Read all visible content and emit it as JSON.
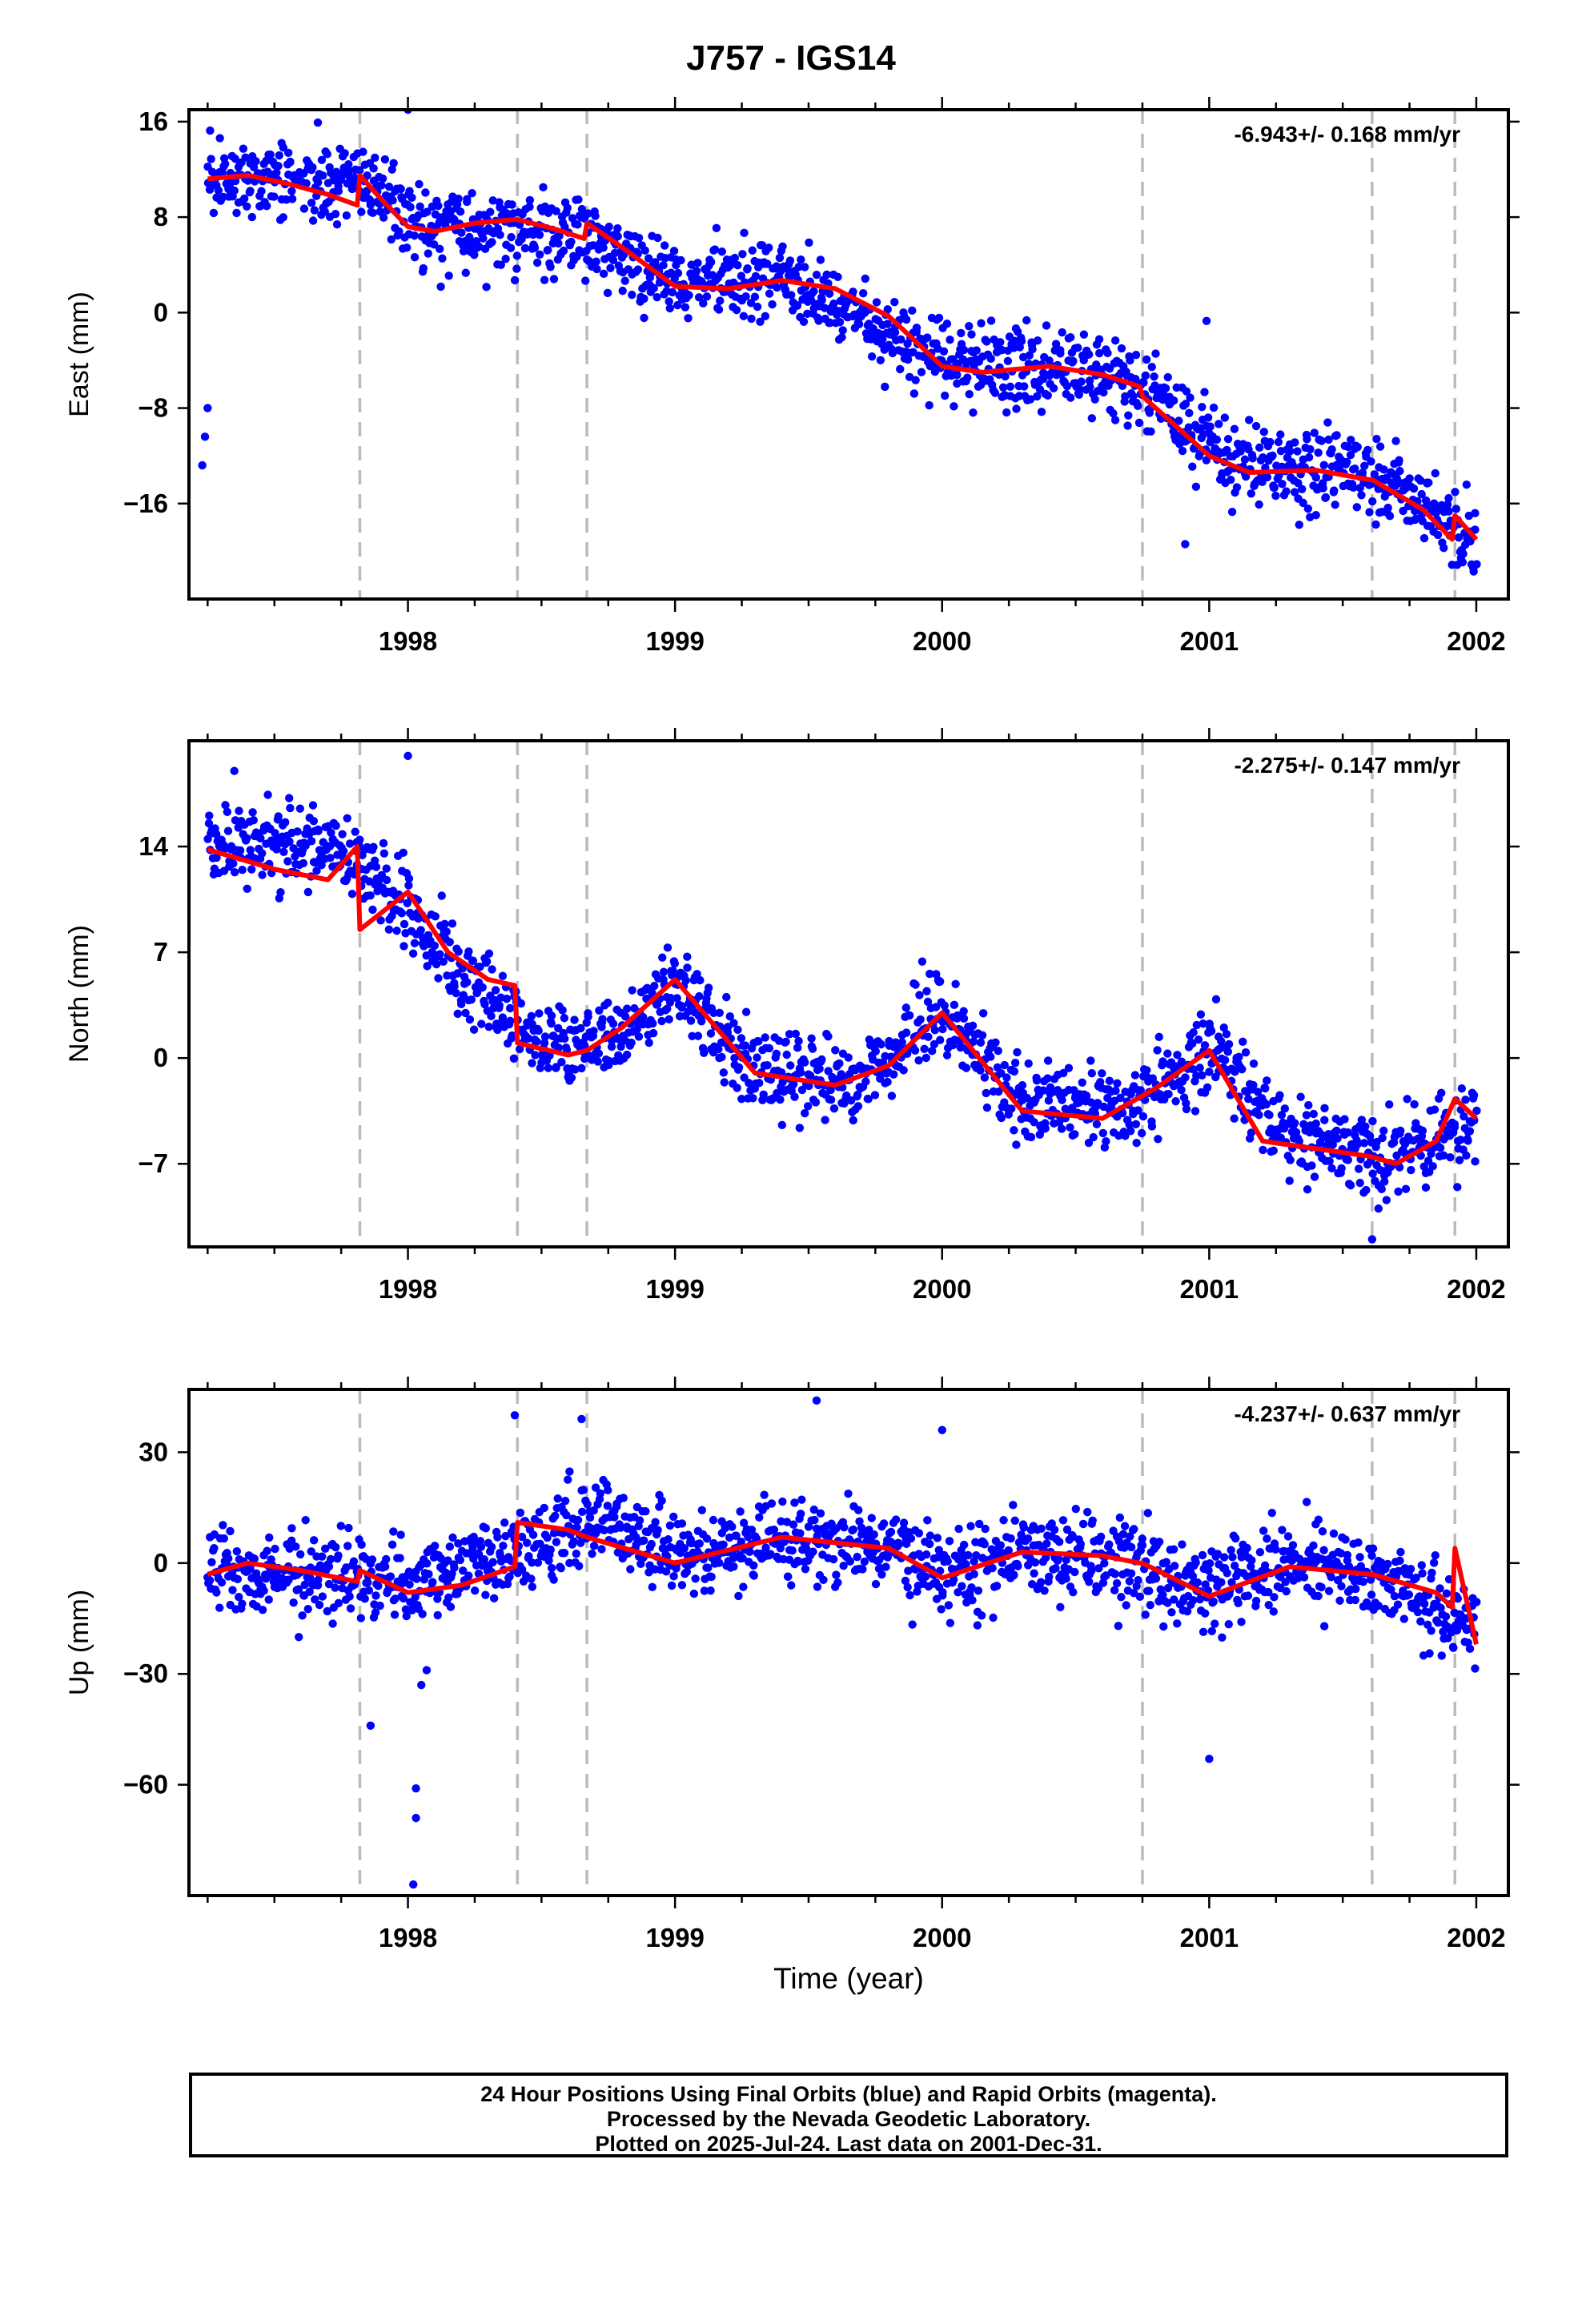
{
  "title": "J757 - IGS14",
  "xlabel": "Time (year)",
  "caption": [
    "24 Hour Positions Using Final Orbits (blue) and Rapid Orbits (magenta).",
    "Processed by the Nevada Geodetic Laboratory.",
    "Plotted on 2025-Jul-24. Last data on 2001-Dec-31."
  ],
  "colors": {
    "points": "#0000ff",
    "model": "#ff0000",
    "steps": "#bbbbbb"
  },
  "chart_data": [
    {
      "type": "scatter",
      "ylabel": "East (mm)",
      "rate": "-6.943+/- 0.168 mm/yr",
      "xlim": [
        1997.18,
        2002.12
      ],
      "ylim": [
        -24,
        17
      ],
      "yticks": [
        16,
        8,
        0,
        -8,
        -16
      ],
      "xticks": [
        1998,
        1999,
        2000,
        2001,
        2002
      ],
      "step_epochs": [
        1997.82,
        1998.41,
        1998.67,
        2000.75,
        2001.61,
        2001.92
      ],
      "model": {
        "x": [
          1997.25,
          1997.4,
          1997.55,
          1997.7,
          1997.81,
          1997.82,
          1997.9,
          1998.0,
          1998.1,
          1998.25,
          1998.4,
          1998.41,
          1998.55,
          1998.66,
          1998.67,
          1998.8,
          1999.0,
          1999.2,
          1999.4,
          1999.6,
          1999.8,
          2000.0,
          2000.15,
          2000.4,
          2000.6,
          2000.74,
          2000.75,
          2001.0,
          2001.15,
          2001.4,
          2001.6,
          2001.61,
          2001.8,
          2001.91,
          2001.92,
          2002.0
        ],
        "y": [
          11.2,
          11.5,
          10.8,
          9.9,
          9.0,
          11.5,
          9.5,
          7.2,
          6.8,
          7.5,
          7.8,
          7.8,
          7.0,
          6.2,
          7.5,
          5.5,
          2.2,
          2.0,
          2.7,
          2.0,
          -0.3,
          -4.5,
          -5.0,
          -4.5,
          -5.2,
          -6.2,
          -7.0,
          -12.0,
          -13.4,
          -13.2,
          -14.0,
          -14.0,
          -16.5,
          -19.0,
          -17.0,
          -19.0
        ]
      },
      "series": [
        {
          "name": "",
          "trend": [
            [
              1997.25,
              11.5
            ],
            [
              1997.8,
              11.0
            ],
            [
              1998.1,
              6.5
            ],
            [
              1998.6,
              6.8
            ],
            [
              1999.0,
              2.5
            ],
            [
              1999.4,
              2.8
            ],
            [
              2000.0,
              -4.0
            ],
            [
              2000.7,
              -5.5
            ],
            [
              2001.1,
              -13.0
            ],
            [
              2001.6,
              -13.5
            ],
            [
              2002.0,
              -19.0
            ]
          ],
          "scatter": 2.8,
          "outliers": [
            [
              1997.25,
              -8.0
            ],
            [
              1997.24,
              -10.4
            ],
            [
              1997.23,
              -12.8
            ],
            [
              1998.0,
              17.0
            ],
            [
              2000.99,
              -0.7
            ],
            [
              2000.91,
              -19.4
            ]
          ]
        }
      ]
    },
    {
      "type": "scatter",
      "ylabel": "North (mm)",
      "rate": "-2.275+/- 0.147 mm/yr",
      "xlim": [
        1997.18,
        2002.12
      ],
      "ylim": [
        -12.5,
        21
      ],
      "yticks": [
        14,
        7,
        0,
        -7
      ],
      "xticks": [
        1998,
        1999,
        2000,
        2001,
        2002
      ],
      "step_epochs": [
        1997.82,
        1998.41,
        1998.67,
        2000.75,
        2001.61,
        2001.92
      ],
      "model": {
        "x": [
          1997.25,
          1997.5,
          1997.7,
          1997.81,
          1997.82,
          1998.0,
          1998.15,
          1998.3,
          1998.4,
          1998.41,
          1998.6,
          1998.67,
          1998.8,
          1999.0,
          1999.3,
          1999.6,
          1999.8,
          2000.0,
          2000.3,
          2000.6,
          2000.8,
          2001.0,
          2001.2,
          2001.4,
          2001.6,
          2001.7,
          2001.85,
          2001.92,
          2002.0
        ],
        "y": [
          13.8,
          12.5,
          11.8,
          14.0,
          8.5,
          11.0,
          7.0,
          5.2,
          4.8,
          1.0,
          0.2,
          0.5,
          2.0,
          5.2,
          -1.0,
          -1.8,
          -0.5,
          3.0,
          -3.5,
          -4.0,
          -2.0,
          0.5,
          -5.5,
          -6.0,
          -6.5,
          -7.0,
          -5.5,
          -2.7,
          -4.0
        ]
      },
      "series": [
        {
          "name": "",
          "trend": [
            [
              1997.25,
              14.5
            ],
            [
              1997.8,
              13.5
            ],
            [
              1998.0,
              10.0
            ],
            [
              1998.2,
              5.5
            ],
            [
              1998.5,
              1.0
            ],
            [
              1998.75,
              1.0
            ],
            [
              1999.0,
              5.0
            ],
            [
              1999.3,
              -1.0
            ],
            [
              1999.7,
              -1.5
            ],
            [
              2000.0,
              3.0
            ],
            [
              2000.3,
              -3.0
            ],
            [
              2000.7,
              -3.5
            ],
            [
              2001.0,
              0.5
            ],
            [
              2001.3,
              -5.5
            ],
            [
              2001.7,
              -6.5
            ],
            [
              2002.0,
              -4.0
            ]
          ],
          "scatter": 2.3,
          "outliers": [
            [
              1998.0,
              20.0
            ],
            [
              2001.61,
              -12.0
            ],
            [
              1997.35,
              19.0
            ]
          ]
        }
      ]
    },
    {
      "type": "scatter",
      "ylabel": "Up (mm)",
      "rate": "-4.237+/- 0.637 mm/yr",
      "xlim": [
        1997.18,
        2002.12
      ],
      "ylim": [
        -90,
        47
      ],
      "yticks": [
        30,
        0,
        -30,
        -60
      ],
      "xticks": [
        1998,
        1999,
        2000,
        2001,
        2002
      ],
      "step_epochs": [
        1997.82,
        1998.41,
        1998.67,
        2000.75,
        2001.61,
        2001.92
      ],
      "model": {
        "x": [
          1997.25,
          1997.4,
          1997.6,
          1997.81,
          1997.82,
          1998.0,
          1998.2,
          1998.4,
          1998.41,
          1998.6,
          1998.67,
          1999.0,
          1999.4,
          1999.8,
          2000.0,
          2000.3,
          2000.6,
          2000.74,
          2000.75,
          2001.0,
          2001.3,
          2001.6,
          2001.61,
          2001.85,
          2001.91,
          2001.92,
          2002.0
        ],
        "y": [
          -3,
          0,
          -2,
          -5,
          -2,
          -8,
          -6,
          -1,
          11,
          9,
          7,
          0,
          7,
          4,
          -4,
          3,
          2,
          0,
          0,
          -9,
          -1,
          -3,
          -3,
          -8,
          -12,
          4,
          -22
        ]
      },
      "series": [
        {
          "name": "",
          "trend": [
            [
              1997.25,
              -1
            ],
            [
              1997.8,
              -3
            ],
            [
              1998.0,
              -7
            ],
            [
              1998.4,
              3
            ],
            [
              1998.7,
              12
            ],
            [
              1999.0,
              2
            ],
            [
              1999.4,
              6
            ],
            [
              1999.8,
              4
            ],
            [
              2000.0,
              -3
            ],
            [
              2000.3,
              3
            ],
            [
              2000.7,
              1
            ],
            [
              2001.0,
              -7
            ],
            [
              2001.3,
              0
            ],
            [
              2001.6,
              -3
            ],
            [
              2002.0,
              -18
            ]
          ],
          "scatter": 9.5,
          "outliers": [
            [
              1997.86,
              -44
            ],
            [
              1998.03,
              -61
            ],
            [
              1998.03,
              -69
            ],
            [
              1998.02,
              -87
            ],
            [
              1998.05,
              -33
            ],
            [
              1998.07,
              -29
            ],
            [
              2001.0,
              -53
            ],
            [
              1999.53,
              44
            ],
            [
              2000.0,
              36
            ],
            [
              1998.65,
              39
            ],
            [
              1998.4,
              40
            ]
          ]
        }
      ]
    }
  ]
}
